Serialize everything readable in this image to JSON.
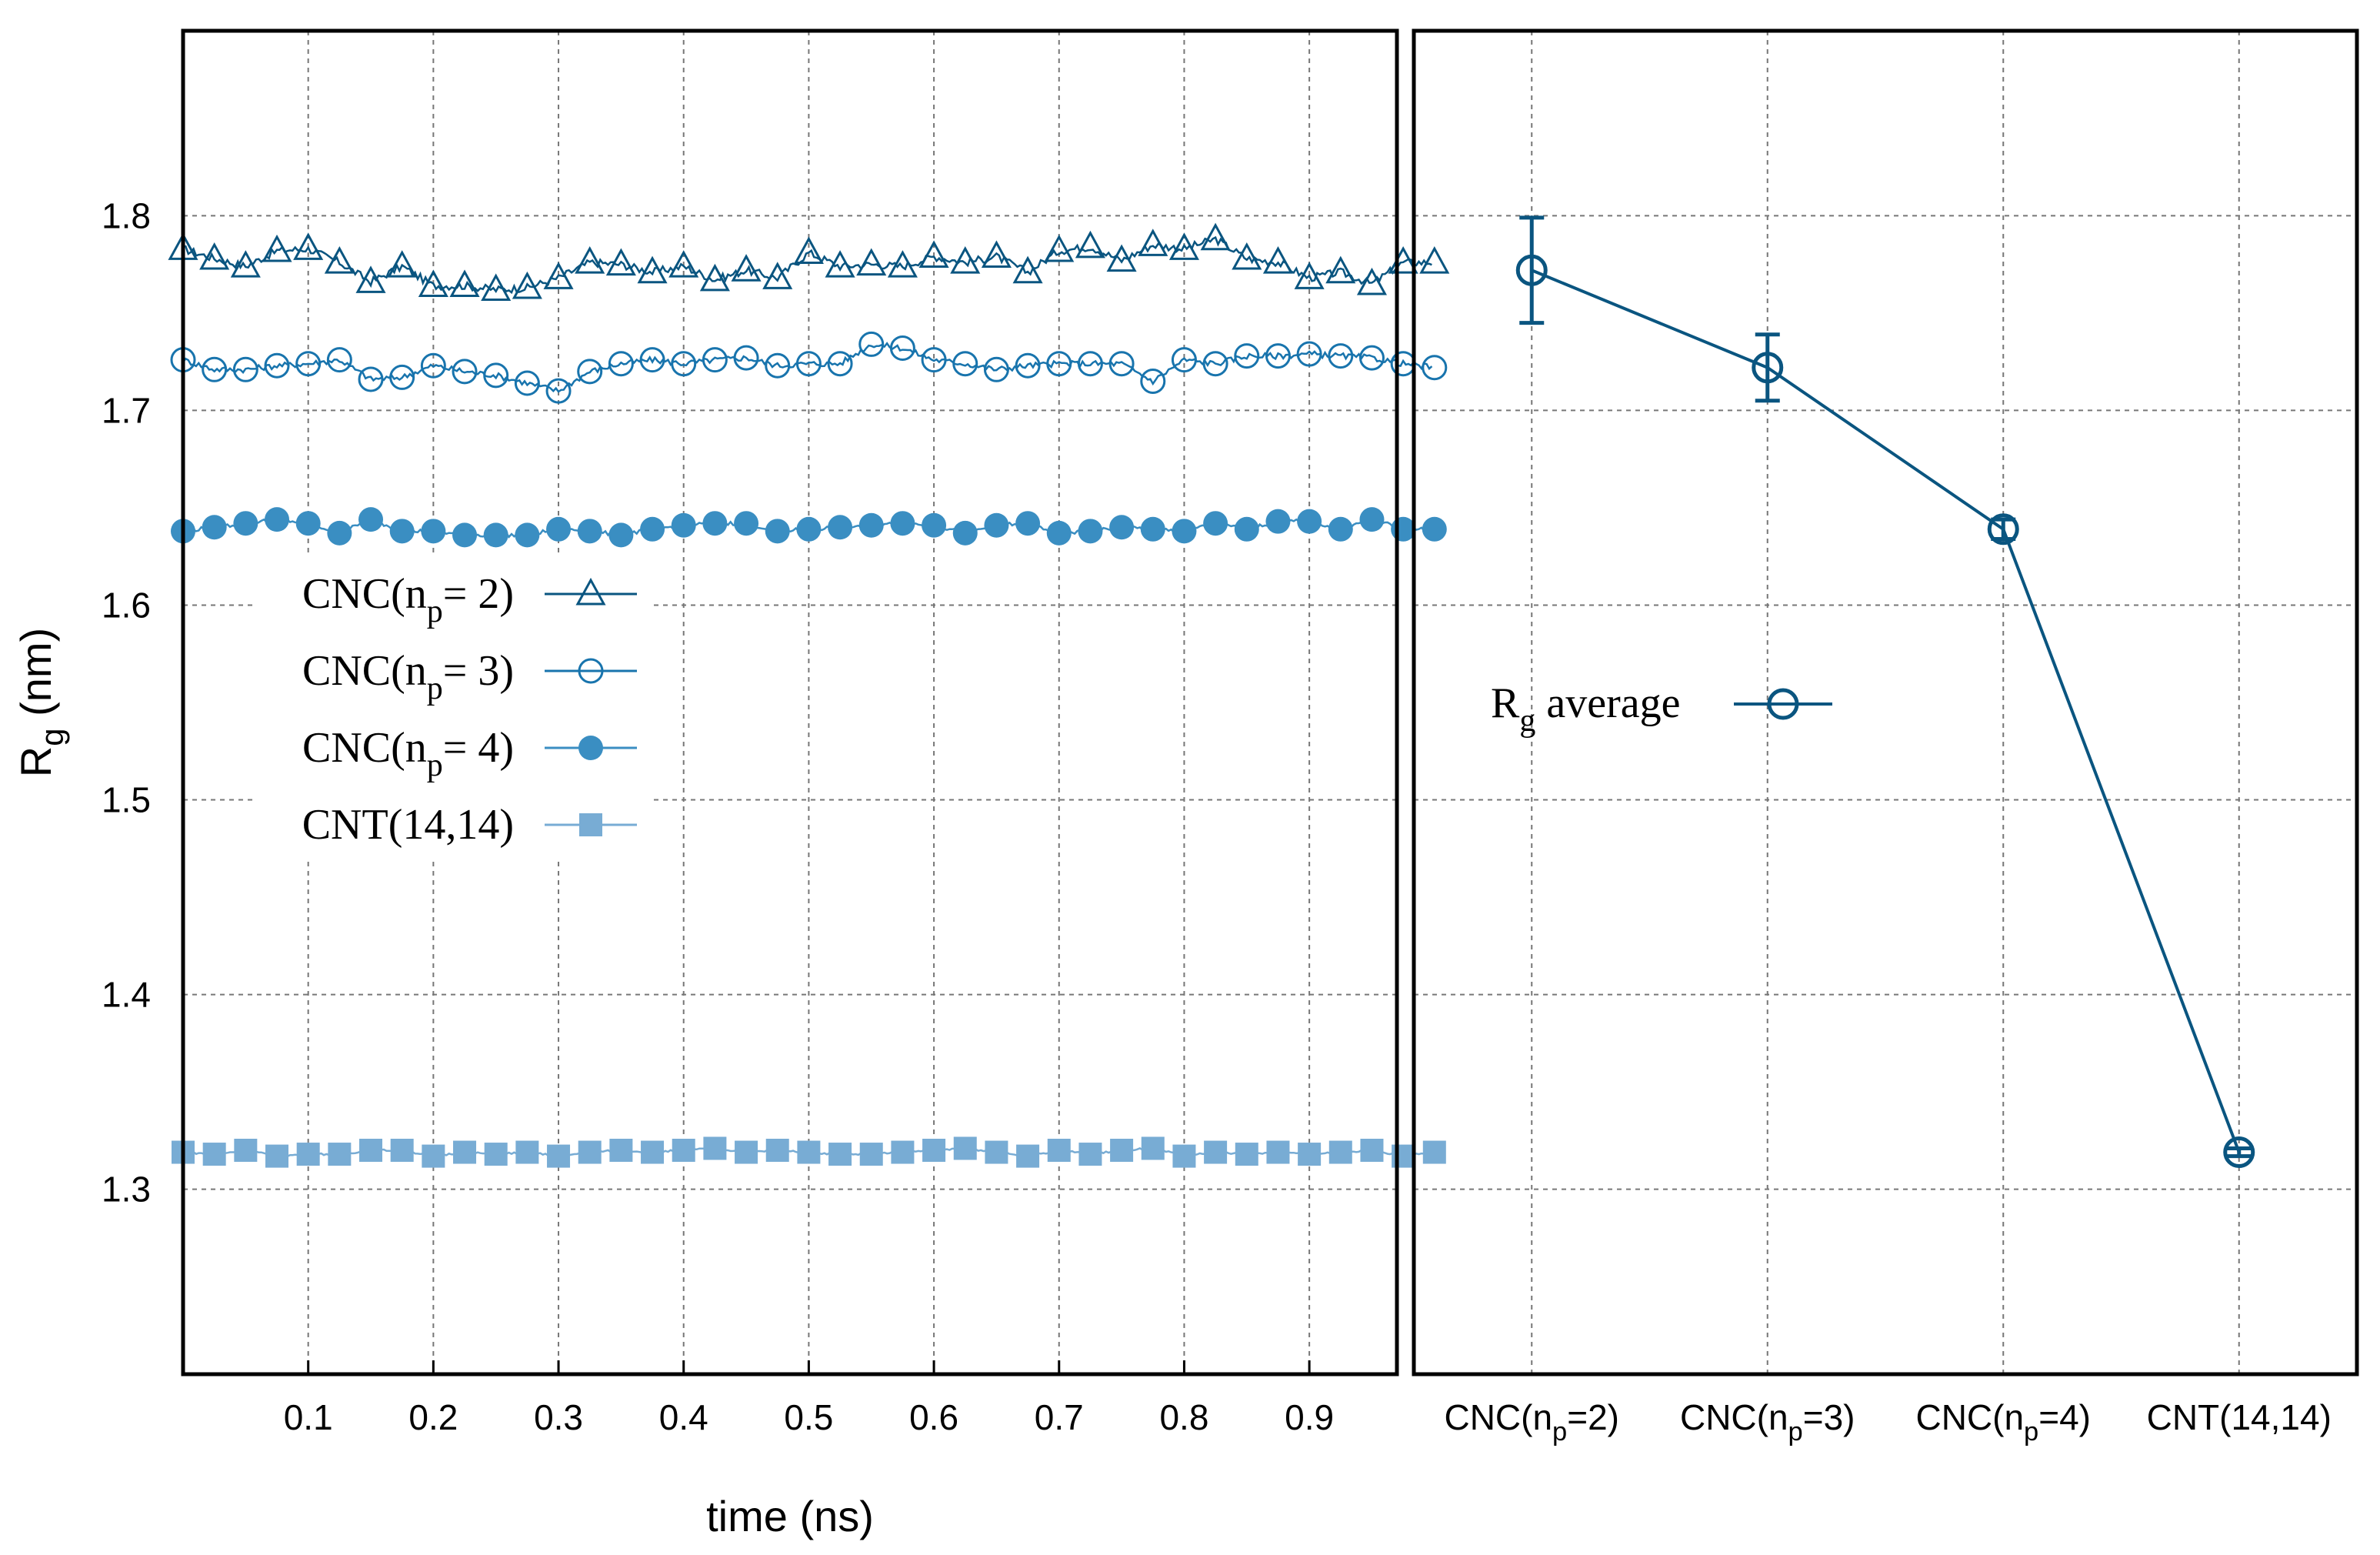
{
  "chart_data": [
    {
      "type": "line",
      "xlabel": "time (ns)",
      "ylabel": {
        "main": "R",
        "sub": "g",
        "end": " (nm)"
      },
      "xlim": [
        0,
        0.97
      ],
      "ylim": [
        1.205,
        1.895
      ],
      "xticks": [
        "0.1",
        "0.2",
        "0.3",
        "0.4",
        "0.5",
        "0.6",
        "0.7",
        "0.8",
        "0.9"
      ],
      "yticks": [
        "1.3",
        "1.4",
        "1.5",
        "1.6",
        "1.7",
        "1.8"
      ],
      "grid": true,
      "legend_placement": "center-left",
      "marker_x_step": 0.025,
      "series": [
        {
          "name": {
            "main": "CNC(n",
            "sub": "p",
            "end": "= 2)"
          },
          "marker": "open-triangle",
          "color": "#0a5580",
          "values": [
            1.783,
            1.778,
            1.774,
            1.782,
            1.783,
            1.776,
            1.766,
            1.774,
            1.764,
            1.764,
            1.762,
            1.763,
            1.768,
            1.776,
            1.775,
            1.771,
            1.774,
            1.767,
            1.772,
            1.768,
            1.781,
            1.774,
            1.775,
            1.774,
            1.779,
            1.776,
            1.779,
            1.771,
            1.782,
            1.784,
            1.777,
            1.785,
            1.783,
            1.788,
            1.778,
            1.776,
            1.768,
            1.771,
            1.765,
            1.776,
            1.776
          ]
        },
        {
          "name": {
            "main": "CNC(n",
            "sub": "p",
            "end": "= 3)"
          },
          "marker": "open-circle",
          "color": "#1874ad",
          "values": [
            1.726,
            1.721,
            1.721,
            1.723,
            1.724,
            1.726,
            1.716,
            1.717,
            1.723,
            1.72,
            1.718,
            1.714,
            1.71,
            1.72,
            1.724,
            1.726,
            1.724,
            1.726,
            1.727,
            1.723,
            1.724,
            1.724,
            1.734,
            1.732,
            1.726,
            1.724,
            1.721,
            1.723,
            1.724,
            1.724,
            1.724,
            1.715,
            1.726,
            1.724,
            1.728,
            1.728,
            1.729,
            1.728,
            1.727,
            1.724,
            1.722
          ]
        },
        {
          "name": {
            "main": "CNC(n",
            "sub": "p",
            "end": "= 4)"
          },
          "marker": "filled-circle",
          "color": "#3a8ec2",
          "values": [
            1.638,
            1.64,
            1.642,
            1.644,
            1.642,
            1.637,
            1.644,
            1.638,
            1.638,
            1.636,
            1.636,
            1.636,
            1.639,
            1.638,
            1.636,
            1.639,
            1.641,
            1.642,
            1.642,
            1.638,
            1.639,
            1.64,
            1.641,
            1.642,
            1.641,
            1.637,
            1.641,
            1.642,
            1.637,
            1.638,
            1.64,
            1.639,
            1.638,
            1.642,
            1.639,
            1.643,
            1.643,
            1.639,
            1.644,
            1.639,
            1.639
          ]
        },
        {
          "name": {
            "main": "CNT(14,14)",
            "sub": "",
            "end": ""
          },
          "marker": "filled-square",
          "color": "#78acd4",
          "values": [
            1.319,
            1.318,
            1.32,
            1.317,
            1.318,
            1.318,
            1.32,
            1.32,
            1.317,
            1.319,
            1.318,
            1.319,
            1.317,
            1.319,
            1.32,
            1.319,
            1.32,
            1.321,
            1.319,
            1.32,
            1.319,
            1.318,
            1.318,
            1.319,
            1.32,
            1.321,
            1.319,
            1.317,
            1.32,
            1.318,
            1.32,
            1.321,
            1.317,
            1.319,
            1.318,
            1.319,
            1.318,
            1.319,
            1.32,
            1.317,
            1.319
          ]
        }
      ]
    },
    {
      "type": "line",
      "categories": [
        {
          "main": "CNC(n",
          "sub": "p",
          "end": "=2)"
        },
        {
          "main": "CNC(n",
          "sub": "p",
          "end": "=3)"
        },
        {
          "main": "CNC(n",
          "sub": "p",
          "end": "=4)"
        },
        {
          "main": "CNT(14,14)",
          "sub": "",
          "end": ""
        }
      ],
      "xlim": [
        0.5,
        4.5
      ],
      "ylim": [
        1.205,
        1.895
      ],
      "grid": true,
      "legend_placement": "center-left",
      "series": [
        {
          "name": {
            "main": "R",
            "sub": "g",
            "end": " average"
          },
          "marker": "open-circle",
          "color": "#0a5580",
          "values": [
            1.772,
            1.722,
            1.639,
            1.319
          ],
          "errors": [
            0.027,
            0.017,
            0.005,
            0.002
          ]
        }
      ]
    }
  ]
}
